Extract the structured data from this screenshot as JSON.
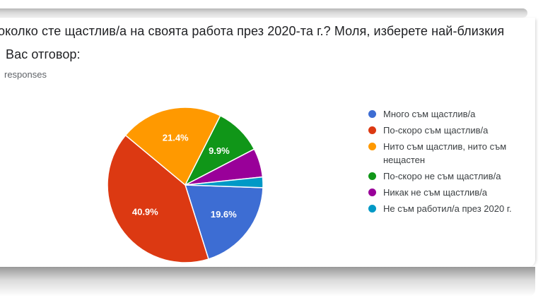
{
  "question_card": {
    "title_line1": "околко сте щастлив/а на своята работа през 2020-та г.? Моля, изберете най-близкия",
    "title_line2": "Вас отговор:",
    "responses_label": "responses"
  },
  "chart_data": {
    "type": "pie",
    "title": "околко сте щастлив/а на своята работа през 2020-та г.? Моля, изберете най-близкия Вас отговор:",
    "subtitle": "responses",
    "legend_position": "right",
    "grid": false,
    "start_angle_deg": 92,
    "slice_separator_color": "#ffffff",
    "value_label_color": "#ffffff",
    "slices": [
      {
        "label": "Много съм щастлив/а",
        "value": 19.6,
        "value_label": "19.6%",
        "color": "#3D6DD3"
      },
      {
        "label": "По-скоро съм щастлив/а",
        "value": 40.9,
        "value_label": "40.9%",
        "color": "#DC3912"
      },
      {
        "label": "Нито съм щастлив, нито съм нещастен",
        "value": 21.4,
        "value_label": "21.4%",
        "color": "#FF9900"
      },
      {
        "label": "По-скоро не съм щастлив/а",
        "value": 9.9,
        "value_label": "9.9%",
        "color": "#109618"
      },
      {
        "label": "Никак не съм щастлив/а",
        "value": 6.0,
        "value_label": "",
        "color": "#990099"
      },
      {
        "label": "Не съм работил/а през 2020 г.",
        "value": 2.2,
        "value_label": "",
        "color": "#0099C6"
      }
    ]
  },
  "colors": {
    "title_text": "#202124",
    "responses_text": "#5f6368",
    "legend_text": "#3c4043",
    "card_background": "#ffffff"
  }
}
